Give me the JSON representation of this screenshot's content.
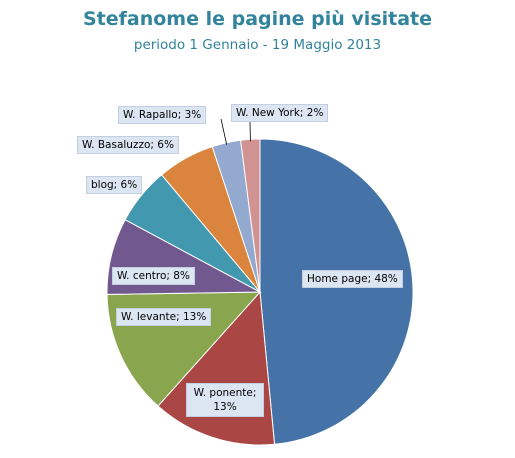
{
  "chart_data": {
    "type": "pie",
    "title": "Stefanome le pagine più visitate",
    "subtitle": "periodo 1 Gennaio - 19 Maggio 2013",
    "slices": [
      {
        "label": "Home page",
        "value": 48,
        "display": "Home page; 48%",
        "color": "#4573a7"
      },
      {
        "label": "W. ponente",
        "value": 13,
        "display": "W. ponente; 13%",
        "color": "#aa4643"
      },
      {
        "label": "W. levante",
        "value": 13,
        "display": "W. levante; 13%",
        "color": "#89a54e"
      },
      {
        "label": "W. centro",
        "value": 8,
        "display": "W. centro; 8%",
        "color": "#71588f"
      },
      {
        "label": "blog",
        "value": 6,
        "display": "blog; 6%",
        "color": "#4198af"
      },
      {
        "label": "W. Basaluzzo",
        "value": 6,
        "display": "W. Basaluzzo; 6%",
        "color": "#db843d"
      },
      {
        "label": "W. Rapallo",
        "value": 3,
        "display": "W. Rapallo; 3%",
        "color": "#93a9cf"
      },
      {
        "label": "W. New York",
        "value": 2,
        "display": "W. New York; 2%",
        "color": "#d19392"
      }
    ]
  }
}
